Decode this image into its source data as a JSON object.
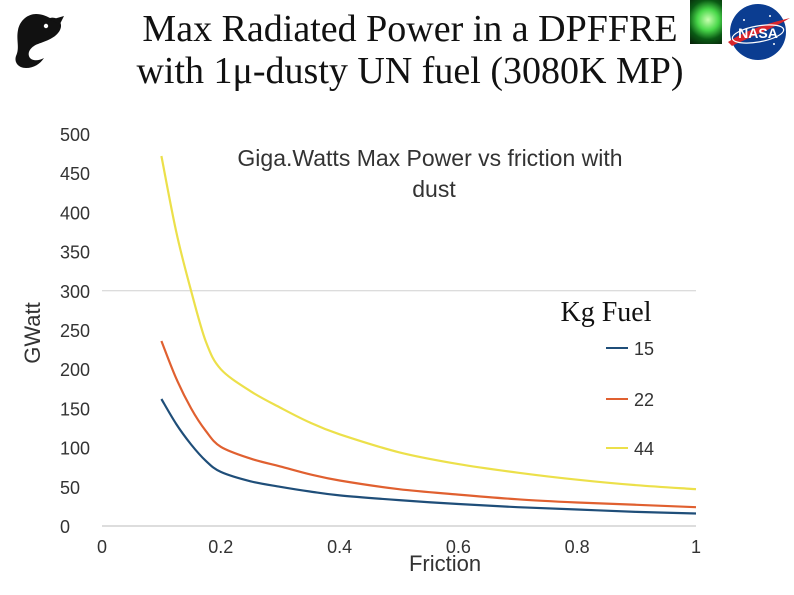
{
  "slide": {
    "title_line1": "Max Radiated Power in a DPFFRE",
    "title_line2": "with 1μ-dusty UN fuel (3080K MP)",
    "logo_left": "seahorse-logo",
    "logo_right": "nasa-logo",
    "logo_right_text": "NASA"
  },
  "colors": {
    "series_15": "#1f4e79",
    "series_22": "#e06030",
    "series_44": "#ece04a",
    "gridline": "#d0d0d0",
    "axis_text": "#333333"
  },
  "chart_data": {
    "type": "line",
    "title": "Giga.Watts Max Power vs friction with dust",
    "title_line1": "Giga.Watts Max Power vs friction with",
    "title_line2": "dust",
    "xlabel": "Friction",
    "ylabel": "GWatt",
    "xlim": [
      0,
      1
    ],
    "ylim": [
      0,
      500
    ],
    "x_ticks": [
      "0",
      "0.2",
      "0.4",
      "0.6",
      "0.8",
      "1"
    ],
    "x_tick_values": [
      0,
      0.2,
      0.4,
      0.6,
      0.8,
      1
    ],
    "y_ticks": [
      "0",
      "50",
      "100",
      "150",
      "200",
      "250",
      "300",
      "350",
      "400",
      "450",
      "500"
    ],
    "y_tick_values": [
      0,
      50,
      100,
      150,
      200,
      250,
      300,
      350,
      400,
      450,
      500
    ],
    "gridlines": [
      300
    ],
    "legend_title": "Kg Fuel",
    "legend_position": "right",
    "x": [
      0.1,
      0.125,
      0.15,
      0.175,
      0.2,
      0.25,
      0.3,
      0.35,
      0.4,
      0.5,
      0.6,
      0.7,
      0.8,
      0.9,
      1.0
    ],
    "series": [
      {
        "name": "15",
        "color_key": "series_15",
        "values": [
          162,
          130,
          104,
          83,
          69,
          57,
          50,
          44,
          39,
          33,
          28,
          24,
          21,
          18,
          16
        ]
      },
      {
        "name": "22",
        "color_key": "series_22",
        "values": [
          236,
          188,
          150,
          121,
          101,
          86,
          76,
          66,
          58,
          47,
          40,
          34,
          30,
          27,
          24
        ]
      },
      {
        "name": "44",
        "color_key": "series_44",
        "values": [
          472,
          375,
          300,
          235,
          200,
          172,
          151,
          132,
          117,
          94,
          79,
          68,
          59,
          52,
          47
        ]
      }
    ]
  }
}
